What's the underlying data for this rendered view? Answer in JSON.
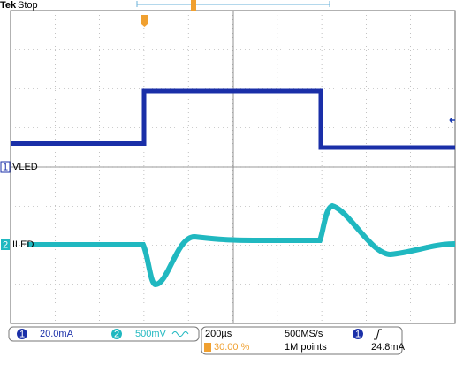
{
  "header": {
    "brand": "Tek",
    "state": "Stop"
  },
  "channels": [
    {
      "number": "1",
      "label": "VLED"
    },
    {
      "number": "2",
      "label": "ILED"
    }
  ],
  "status": {
    "ch1_scale": "20.0mA",
    "ch2_scale": "500mV",
    "timebase": "200µs",
    "trigger_position": "30.00 %",
    "sample_rate": "500MS/s",
    "record_length": "1M points",
    "trigger_source": "1",
    "trigger_level": "24.8mA"
  }
}
